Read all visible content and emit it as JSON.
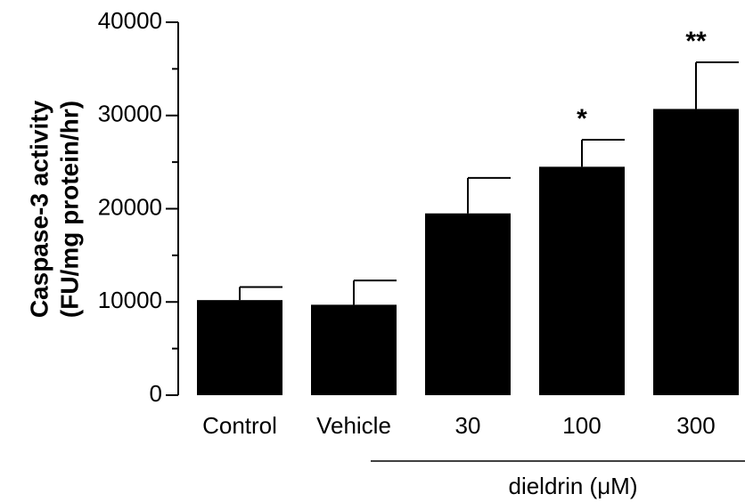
{
  "chart_data": {
    "type": "bar",
    "ylabel": [
      "Caspase-3 activity",
      "(FU/mg protein/hr)"
    ],
    "categories": [
      "Control",
      "Vehicle",
      "30",
      "100",
      "300"
    ],
    "values": [
      10200,
      9700,
      19500,
      24500,
      30700
    ],
    "errors": [
      1400,
      2600,
      3800,
      2900,
      5000
    ],
    "significance": [
      null,
      null,
      null,
      "*",
      "**"
    ],
    "group_label": "dieldrin (μM)",
    "color": "#000000",
    "ylim": [
      0,
      40000
    ],
    "yticks": [
      0,
      10000,
      20000,
      30000,
      40000
    ],
    "minor_yticks": [
      5000,
      15000,
      25000,
      35000
    ],
    "grid": false
  }
}
